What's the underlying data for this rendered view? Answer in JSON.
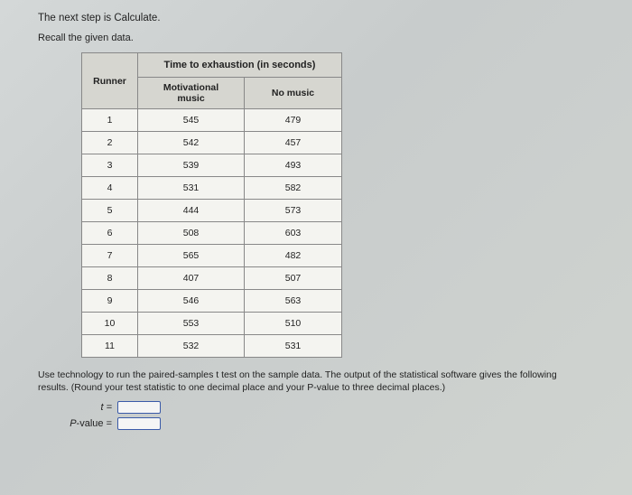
{
  "step_line": "The next step is Calculate.",
  "recall_line": "Recall the given data.",
  "table": {
    "runner_header": "Runner",
    "super_header": "Time to exhaustion (in seconds)",
    "col_mot": "Motivational music",
    "col_nom": "No music",
    "rows": [
      {
        "r": "1",
        "m": "545",
        "n": "479"
      },
      {
        "r": "2",
        "m": "542",
        "n": "457"
      },
      {
        "r": "3",
        "m": "539",
        "n": "493"
      },
      {
        "r": "4",
        "m": "531",
        "n": "582"
      },
      {
        "r": "5",
        "m": "444",
        "n": "573"
      },
      {
        "r": "6",
        "m": "508",
        "n": "603"
      },
      {
        "r": "7",
        "m": "565",
        "n": "482"
      },
      {
        "r": "8",
        "m": "407",
        "n": "507"
      },
      {
        "r": "9",
        "m": "546",
        "n": "563"
      },
      {
        "r": "10",
        "m": "553",
        "n": "510"
      },
      {
        "r": "11",
        "m": "532",
        "n": "531"
      }
    ],
    "header_bg": "#d6d6d0",
    "cell_bg": "#f4f4f0",
    "border_color": "#888888"
  },
  "instruction": "Use technology to run the paired-samples t test on the sample data. The output of the statistical software gives the following results. (Round your test statistic to one decimal place and your P-value to three decimal places.)",
  "answers": {
    "t_label": "t =",
    "p_label": "P-value ="
  },
  "colors": {
    "page_bg": "#d0d4d0",
    "text": "#222222",
    "input_border": "#3a5aa8"
  }
}
